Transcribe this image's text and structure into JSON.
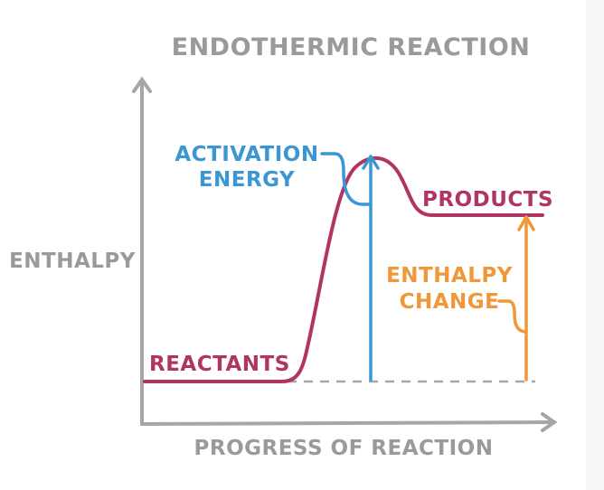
{
  "diagram": {
    "title": "ENDOTHERMIC REACTION",
    "y_axis_label": "ENTHALPY",
    "x_axis_label": "PROGRESS OF REACTION",
    "labels": {
      "reactants": "REACTANTS",
      "products": "PRODUCTS",
      "activation_energy_line1": "ACTIVATION",
      "activation_energy_line2": "ENERGY",
      "enthalpy_change_line1": "ENTHALPY",
      "enthalpy_change_line2": "CHANGE"
    }
  },
  "colors": {
    "axis": "#a6a6a6",
    "text_gray": "#9a9a9a",
    "curve": "#b03565",
    "activation": "#3a97d4",
    "enthalpy_change": "#f0973a",
    "dashed": "#a6a6a6"
  }
}
